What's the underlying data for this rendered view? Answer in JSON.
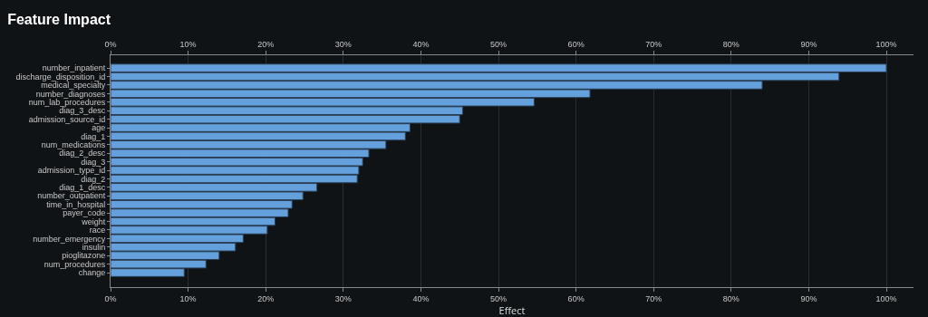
{
  "chart_data": {
    "type": "bar",
    "title": "Feature Impact",
    "xlabel": "Effect",
    "orientation": "horizontal",
    "categories": [
      "number_inpatient",
      "discharge_disposition_id",
      "medical_specialty",
      "number_diagnoses",
      "num_lab_procedures",
      "diag_3_desc",
      "admission_source_id",
      "age",
      "diag_1",
      "num_medications",
      "diag_2_desc",
      "diag_3",
      "admission_type_id",
      "diag_2",
      "diag_1_desc",
      "number_outpatient",
      "time_in_hospital",
      "payer_code",
      "weight",
      "race",
      "number_emergency",
      "insulin",
      "pioglitazone",
      "num_procedures",
      "change"
    ],
    "values": [
      100,
      93.9,
      84.0,
      61.8,
      54.6,
      45.4,
      45.0,
      38.6,
      38.0,
      35.5,
      33.3,
      32.5,
      32.0,
      31.8,
      26.6,
      24.8,
      23.4,
      22.9,
      21.2,
      20.2,
      17.1,
      16.1,
      14.0,
      12.3,
      9.5
    ],
    "color": "#64a0dc",
    "xlim": [
      0,
      103.5
    ],
    "xticks": [
      {
        "value": 0,
        "label": "0%"
      },
      {
        "value": 10,
        "label": "10%"
      },
      {
        "value": 20,
        "label": "20%"
      },
      {
        "value": 30,
        "label": "30%"
      },
      {
        "value": 40,
        "label": "40%"
      },
      {
        "value": 50,
        "label": "50%"
      },
      {
        "value": 60,
        "label": "60%"
      },
      {
        "value": 70,
        "label": "70%"
      },
      {
        "value": 80,
        "label": "80%"
      },
      {
        "value": 90,
        "label": "90%"
      },
      {
        "value": 100,
        "label": "100%"
      }
    ],
    "x2lim": [
      0,
      103.5
    ],
    "x2ticks": [
      {
        "value": 0,
        "label": "0%"
      },
      {
        "value": 10,
        "label": "10%"
      },
      {
        "value": 20,
        "label": "20%"
      },
      {
        "value": 30,
        "label": "30%"
      },
      {
        "value": 40,
        "label": "40%"
      },
      {
        "value": 50,
        "label": "50%"
      },
      {
        "value": 60,
        "label": "60%"
      },
      {
        "value": 70,
        "label": "70%"
      },
      {
        "value": 80,
        "label": "80%"
      },
      {
        "value": 90,
        "label": "90%"
      },
      {
        "value": 100,
        "label": "100%"
      }
    ],
    "grid": "x"
  }
}
